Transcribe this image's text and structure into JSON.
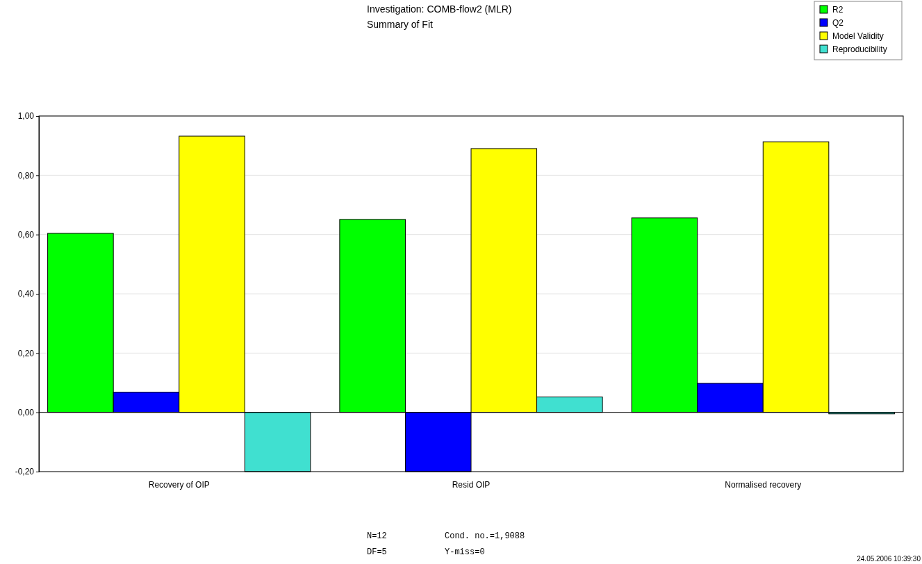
{
  "chart_data": {
    "type": "bar",
    "title": "Investigation: COMB-flow2 (MLR)",
    "subtitle": "Summary of Fit",
    "categories": [
      "Recovery of OIP",
      "Resid OIP",
      "Normalised recovery"
    ],
    "series": [
      {
        "name": "R2",
        "color": "#00ff00",
        "values": [
          0.604,
          0.651,
          0.656
        ]
      },
      {
        "name": "Q2",
        "color": "#0000ff",
        "values": [
          0.068,
          -0.2,
          0.098
        ]
      },
      {
        "name": "Model Validity",
        "color": "#ffff00",
        "values": [
          0.932,
          0.89,
          0.913
        ]
      },
      {
        "name": "Reproducibility",
        "color": "#40e0d0",
        "values": [
          -0.2,
          0.052,
          -0.005
        ]
      }
    ],
    "ylim": [
      -0.2,
      1.0
    ],
    "yticks": [
      {
        "value": -0.2,
        "label": "-0,20"
      },
      {
        "value": 0,
        "label": "0,00"
      },
      {
        "value": 0.2,
        "label": "0,20"
      },
      {
        "value": 0.4,
        "label": "0,40"
      },
      {
        "value": 0.6,
        "label": "0,60"
      },
      {
        "value": 0.8,
        "label": "0,80"
      },
      {
        "value": 1.0,
        "label": "1,00"
      }
    ],
    "grid": "y",
    "legend": "top right",
    "annotations": [
      "N=12",
      "DF=5",
      "Cond. no.=1,9088",
      "Y-miss=0",
      "24.05.2006 10:39:30"
    ]
  }
}
